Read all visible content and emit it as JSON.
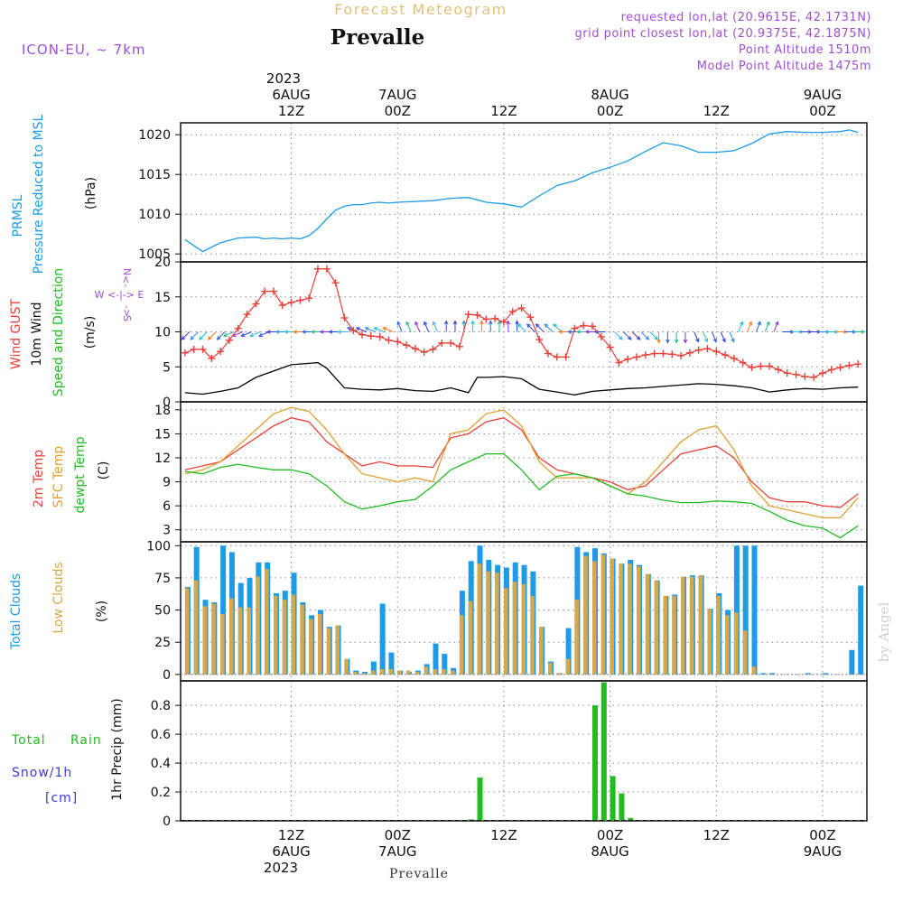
{
  "header": {
    "subtitle": "Forecast Meteogram",
    "location": "Prevalle",
    "model": "ICON-EU, ~ 7km",
    "requested": "requested lon,lat (20.9615E, 42.1731N)",
    "grid_point": "grid point closest lon,lat (20.9375E, 42.1875N)",
    "point_altitude": "Point Altitude 1510m",
    "model_altitude": "Model Point Altitude 1475m",
    "footer_location": "Prevalle",
    "watermark": "by Angel"
  },
  "colors": {
    "pressure": "#1e9be6",
    "gust": "#e8413a",
    "wind": "#000000",
    "temp2m": "#e8413a",
    "sfctemp": "#e0a030",
    "dewpt": "#22bb22",
    "total_clouds": "#1e9be6",
    "low_clouds": "#d6a84a",
    "rain": "#22bb22",
    "snow": "#3b3bdd",
    "purple": "#a050d0"
  },
  "top_axis": {
    "year_label": "2023",
    "ticks": [
      {
        "hour": 12,
        "line1": "6AUG",
        "line2": "12Z"
      },
      {
        "hour": 24,
        "line1": "7AUG",
        "line2": "00Z"
      },
      {
        "hour": 36,
        "line1": "",
        "line2": "12Z"
      },
      {
        "hour": 48,
        "line1": "8AUG",
        "line2": "00Z"
      },
      {
        "hour": 60,
        "line1": "",
        "line2": "12Z"
      },
      {
        "hour": 72,
        "line1": "9AUG",
        "line2": "00Z"
      }
    ]
  },
  "bottom_axis": {
    "year_label": "2023",
    "ticks": [
      {
        "hour": 12,
        "line1": "12Z",
        "line2": "6AUG"
      },
      {
        "hour": 24,
        "line1": "00Z",
        "line2": "7AUG"
      },
      {
        "hour": 36,
        "line1": "12Z",
        "line2": ""
      },
      {
        "hour": 48,
        "line1": "00Z",
        "line2": "8AUG"
      },
      {
        "hour": 60,
        "line1": "12Z",
        "line2": ""
      },
      {
        "hour": 72,
        "line1": "00Z",
        "line2": "9AUG"
      }
    ]
  },
  "panel_labels": {
    "pressure": {
      "line1": "PRMSL",
      "line2": "Pressure Reduced to MSL",
      "unit": "(hPa)"
    },
    "wind": {
      "gust": "Wind GUST",
      "wind10": "10m Wind",
      "speed_dir": "Speed and Direction",
      "unit": "(m/s)",
      "compass_n": "N",
      "compass_s": "S",
      "compass_we": "W <-|-> E"
    },
    "temp": {
      "t2m": "2m Temp",
      "sfc": "SFC Temp",
      "dewpt": "dewpt Temp",
      "unit": "(C)"
    },
    "clouds": {
      "total": "Total Clouds",
      "low": "Low Clouds",
      "unit": "(%)"
    },
    "precip": {
      "rain_a": "Total",
      "rain_b": "Rain",
      "snow": "Snow/1h",
      "snow_unit": "[cm]",
      "ylabel": "1hr Precip (mm)"
    }
  },
  "chart_data": [
    {
      "type": "line",
      "id": "pressure",
      "title": "PRMSL Pressure Reduced to MSL",
      "ylabel": "(hPa)",
      "ylim": [
        1004,
        1021.5
      ],
      "yticks": [
        1005,
        1010,
        1015,
        1020
      ],
      "xlim": [
        -0.5,
        77
      ],
      "x_unit": "hours from 6AUG 00Z",
      "series": [
        {
          "name": "PRMSL",
          "x": [
            0,
            2,
            4,
            6,
            8,
            9,
            10,
            11,
            12,
            13,
            14,
            15,
            16,
            17,
            18,
            19,
            20,
            21,
            22,
            23,
            24,
            26,
            28,
            30,
            32,
            34,
            36,
            38,
            40,
            42,
            44,
            46,
            48,
            50,
            52,
            54,
            56,
            58,
            60,
            62,
            64,
            66,
            68,
            70,
            72,
            74,
            75,
            76
          ],
          "values": [
            1006.8,
            1005.3,
            1006.4,
            1007.0,
            1007.1,
            1006.9,
            1007.0,
            1006.9,
            1007.0,
            1006.9,
            1007.3,
            1008.2,
            1009.4,
            1010.5,
            1011.0,
            1011.2,
            1011.2,
            1011.4,
            1011.5,
            1011.4,
            1011.5,
            1011.6,
            1011.7,
            1012.0,
            1012.1,
            1011.5,
            1011.3,
            1010.9,
            1012.3,
            1013.6,
            1014.2,
            1015.2,
            1015.9,
            1016.7,
            1017.9,
            1019.0,
            1018.6,
            1017.8,
            1017.8,
            1018.0,
            1018.9,
            1020.1,
            1020.4,
            1020.3,
            1020.3,
            1020.4,
            1020.6,
            1020.3
          ]
        }
      ]
    },
    {
      "type": "line",
      "id": "wind",
      "title": "Wind GUST / 10m Wind Speed and Direction",
      "ylabel": "(m/s)",
      "ylim": [
        0,
        20
      ],
      "yticks": [
        0,
        5,
        10,
        15,
        20
      ],
      "xlim": [
        -0.5,
        77
      ],
      "series": [
        {
          "name": "Wind GUST",
          "x": [
            0,
            1,
            2,
            3,
            4,
            5,
            6,
            7,
            8,
            9,
            10,
            11,
            12,
            13,
            14,
            15,
            16,
            17,
            18,
            19,
            20,
            21,
            22,
            23,
            24,
            25,
            26,
            27,
            28,
            29,
            30,
            31,
            32,
            33,
            34,
            35,
            36,
            37,
            38,
            39,
            40,
            41,
            42,
            43,
            44,
            45,
            46,
            47,
            48,
            49,
            50,
            51,
            52,
            53,
            54,
            55,
            56,
            57,
            58,
            59,
            60,
            61,
            62,
            63,
            64,
            65,
            66,
            67,
            68,
            69,
            70,
            71,
            72,
            73,
            74,
            75,
            76
          ],
          "values": [
            7,
            7.5,
            7.5,
            6.2,
            7.2,
            8.8,
            10.5,
            12.5,
            14,
            15.8,
            15.8,
            13.8,
            14.2,
            14.5,
            14.8,
            19,
            19,
            17,
            12,
            10.2,
            9.6,
            9.4,
            9.3,
            8.8,
            8.6,
            8.1,
            7.6,
            7.1,
            7.5,
            8.4,
            8.4,
            7.9,
            12.5,
            12.4,
            11.8,
            11.9,
            11.4,
            12.9,
            13.4,
            12.1,
            8.9,
            6.9,
            6.4,
            6.4,
            10.5,
            10.9,
            10.8,
            9.3,
            7.8,
            5.6,
            6.1,
            6.4,
            6.7,
            6.9,
            6.9,
            6.8,
            6.6,
            7.0,
            7.4,
            7.6,
            7.2,
            6.7,
            6.2,
            5.6,
            4.9,
            5.1,
            5.1,
            4.6,
            4.1,
            3.9,
            3.6,
            3.5,
            4.1,
            4.6,
            4.9,
            5.2,
            5.4
          ]
        },
        {
          "name": "10m Wind",
          "x": [
            0,
            2,
            4,
            6,
            8,
            10,
            12,
            14,
            15,
            16,
            18,
            20,
            22,
            24,
            26,
            28,
            30,
            32,
            33,
            34,
            36,
            38,
            40,
            42,
            44,
            46,
            48,
            50,
            52,
            54,
            56,
            58,
            60,
            62,
            64,
            66,
            68,
            70,
            72,
            74,
            76
          ],
          "values": [
            1.3,
            1.1,
            1.5,
            2.0,
            3.5,
            4.4,
            5.3,
            5.5,
            5.6,
            4.8,
            2.0,
            1.8,
            1.7,
            1.9,
            1.6,
            1.5,
            2.0,
            1.3,
            3.5,
            3.5,
            3.6,
            3.3,
            1.8,
            1.4,
            1.0,
            1.5,
            1.7,
            1.9,
            2.0,
            2.2,
            2.4,
            2.6,
            2.5,
            2.3,
            2.0,
            1.4,
            1.7,
            1.9,
            1.8,
            2.0,
            2.1
          ]
        }
      ],
      "wind_barb_directions": [
        "SW",
        "WSW",
        "W",
        "W",
        "WNW",
        "NNW",
        "N",
        "N",
        "NW",
        "W",
        "SE",
        "S",
        "SSE",
        "NNE",
        "E",
        "E"
      ]
    },
    {
      "type": "line",
      "id": "temperature",
      "title": "2m Temp / SFC Temp / dewpt Temp",
      "ylabel": "(C)",
      "ylim": [
        1.5,
        19
      ],
      "yticks": [
        3,
        6,
        9,
        12,
        15,
        18
      ],
      "xlim": [
        -0.5,
        77
      ],
      "series": [
        {
          "name": "2m Temp",
          "x": [
            0,
            2,
            4,
            6,
            8,
            10,
            12,
            14,
            16,
            18,
            20,
            22,
            24,
            26,
            28,
            30,
            32,
            34,
            36,
            38,
            40,
            42,
            44,
            46,
            48,
            50,
            52,
            54,
            56,
            58,
            60,
            62,
            64,
            66,
            68,
            70,
            72,
            74,
            76
          ],
          "values": [
            10.5,
            11.0,
            11.5,
            13.0,
            14.5,
            16.0,
            17.0,
            16.5,
            14.0,
            12.5,
            11.0,
            11.5,
            11.0,
            11.0,
            10.8,
            14.5,
            15.0,
            16.5,
            17.0,
            15.5,
            12.0,
            10.5,
            10.0,
            9.5,
            9.0,
            8.0,
            8.5,
            10.5,
            12.5,
            13.0,
            13.5,
            12.0,
            9.0,
            7.0,
            6.5,
            6.5,
            6.0,
            5.8,
            7.5
          ]
        },
        {
          "name": "SFC Temp",
          "x": [
            0,
            2,
            4,
            6,
            8,
            10,
            12,
            14,
            16,
            18,
            20,
            22,
            24,
            26,
            28,
            30,
            32,
            34,
            36,
            38,
            40,
            42,
            44,
            46,
            48,
            50,
            52,
            54,
            56,
            58,
            60,
            62,
            64,
            66,
            68,
            70,
            72,
            74,
            76
          ],
          "values": [
            10.0,
            10.5,
            11.5,
            13.5,
            15.5,
            17.5,
            18.3,
            17.8,
            15.5,
            12.5,
            10.0,
            9.5,
            9.0,
            9.5,
            9.0,
            15.0,
            15.5,
            17.5,
            18.0,
            16.0,
            11.5,
            9.5,
            9.5,
            9.5,
            8.5,
            7.5,
            9.0,
            11.5,
            14.0,
            15.5,
            16.0,
            13.0,
            8.5,
            6.0,
            5.5,
            5.0,
            4.5,
            4.5,
            7.0
          ]
        },
        {
          "name": "dewpt Temp",
          "x": [
            0,
            2,
            4,
            6,
            8,
            10,
            12,
            14,
            16,
            18,
            20,
            22,
            24,
            26,
            28,
            30,
            32,
            34,
            36,
            38,
            40,
            42,
            44,
            46,
            48,
            50,
            52,
            54,
            56,
            58,
            60,
            62,
            64,
            66,
            68,
            70,
            72,
            74,
            76
          ],
          "values": [
            10.3,
            10.0,
            10.8,
            11.2,
            10.8,
            10.5,
            10.5,
            10.0,
            8.5,
            6.5,
            5.6,
            6.0,
            6.5,
            6.8,
            8.5,
            10.5,
            11.5,
            12.5,
            12.5,
            10.5,
            8.0,
            9.7,
            10.0,
            9.5,
            8.5,
            7.5,
            7.2,
            6.7,
            6.4,
            6.4,
            6.6,
            6.5,
            6.3,
            5.3,
            4.2,
            3.5,
            3.2,
            2.0,
            3.5
          ]
        }
      ]
    },
    {
      "type": "bar",
      "id": "clouds",
      "title": "Total Clouds / Low Clouds",
      "ylabel": "(%)",
      "ylim": [
        -5,
        103
      ],
      "yticks": [
        0,
        25,
        50,
        75,
        100
      ],
      "xlim": [
        -0.5,
        77
      ],
      "x": [
        0,
        1,
        2,
        3,
        4,
        5,
        6,
        7,
        8,
        9,
        10,
        11,
        12,
        13,
        14,
        15,
        16,
        17,
        18,
        19,
        20,
        21,
        22,
        23,
        24,
        25,
        26,
        27,
        28,
        29,
        30,
        31,
        32,
        33,
        34,
        35,
        36,
        37,
        38,
        39,
        40,
        41,
        42,
        43,
        44,
        45,
        46,
        47,
        48,
        49,
        50,
        51,
        52,
        53,
        54,
        55,
        56,
        57,
        58,
        59,
        60,
        61,
        62,
        63,
        64,
        65,
        66,
        67,
        68,
        69,
        70,
        71,
        72,
        73,
        74,
        75,
        76
      ],
      "series": [
        {
          "name": "Total Clouds",
          "values": [
            68,
            99,
            58,
            56,
            100,
            95,
            71,
            75,
            87,
            87,
            63,
            65,
            79,
            56,
            46,
            50,
            37,
            38,
            12,
            3,
            2,
            10,
            55,
            17,
            3,
            2,
            3,
            8,
            24,
            16,
            5,
            65,
            88,
            100,
            89,
            85,
            83,
            87,
            85,
            80,
            37,
            10,
            1,
            36,
            99,
            95,
            98,
            94,
            90,
            86,
            89,
            85,
            78,
            73,
            61,
            62,
            76,
            77,
            77,
            51,
            63,
            50,
            100,
            100,
            100,
            1,
            1,
            0,
            0,
            0,
            1,
            0,
            1,
            0,
            0,
            19,
            69
          ]
        },
        {
          "name": "Low Clouds",
          "values": [
            67,
            73,
            53,
            55,
            47,
            59,
            52,
            52,
            76,
            82,
            61,
            58,
            62,
            54,
            43,
            47,
            36,
            38,
            12,
            2,
            1,
            3,
            4,
            4,
            3,
            3,
            2,
            6,
            4,
            4,
            3,
            46,
            57,
            86,
            80,
            79,
            67,
            72,
            70,
            61,
            37,
            9,
            1,
            12,
            58,
            92,
            88,
            93,
            90,
            86,
            86,
            84,
            78,
            73,
            61,
            61,
            76,
            76,
            77,
            51,
            61,
            46,
            48,
            34,
            6,
            0,
            0,
            0,
            0,
            0,
            0,
            0,
            0,
            0,
            0,
            0,
            0
          ]
        }
      ]
    },
    {
      "type": "bar",
      "id": "precip",
      "title": "1hr Precip (mm)",
      "ylabel": "1hr Precip (mm)",
      "ylim": [
        0,
        0.97
      ],
      "yticks": [
        0,
        0.2,
        0.4,
        0.6,
        0.8
      ],
      "xlim": [
        -0.5,
        77
      ],
      "x": [
        32,
        33,
        46,
        47,
        48,
        49,
        50
      ],
      "series": [
        {
          "name": "Rain",
          "values": [
            0.01,
            0.3,
            0.8,
            0.96,
            0.31,
            0.19,
            0.02
          ]
        }
      ]
    }
  ]
}
